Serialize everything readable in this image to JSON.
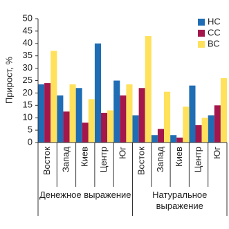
{
  "chart_data": {
    "type": "bar",
    "y_label": "Прирост, %",
    "categories": [
      "Восток",
      "Запад",
      "Киев",
      "Центр",
      "Юг",
      "Восток",
      "Запад",
      "Киев",
      "Центр",
      "Юг"
    ],
    "groups": [
      "Денежное выражение",
      "Натуральное выражение"
    ],
    "series": [
      {
        "name": "НС",
        "color": "#1f6db4",
        "values": [
          23.5,
          19,
          22,
          40,
          25,
          11,
          3,
          3,
          23,
          11
        ]
      },
      {
        "name": "СС",
        "color": "#a3174c",
        "values": [
          24,
          12.5,
          8,
          12,
          19,
          22,
          5.5,
          2,
          7,
          15
        ]
      },
      {
        "name": "ВС",
        "color": "#ffe15c",
        "values": [
          37,
          23.5,
          17.5,
          13,
          23.5,
          43,
          20.5,
          14.5,
          10,
          26
        ]
      }
    ],
    "ylim": [
      0,
      50
    ],
    "yticks": [
      0,
      5,
      10,
      15,
      20,
      25,
      30,
      35,
      40,
      45,
      50
    ],
    "legend": "top-right"
  }
}
